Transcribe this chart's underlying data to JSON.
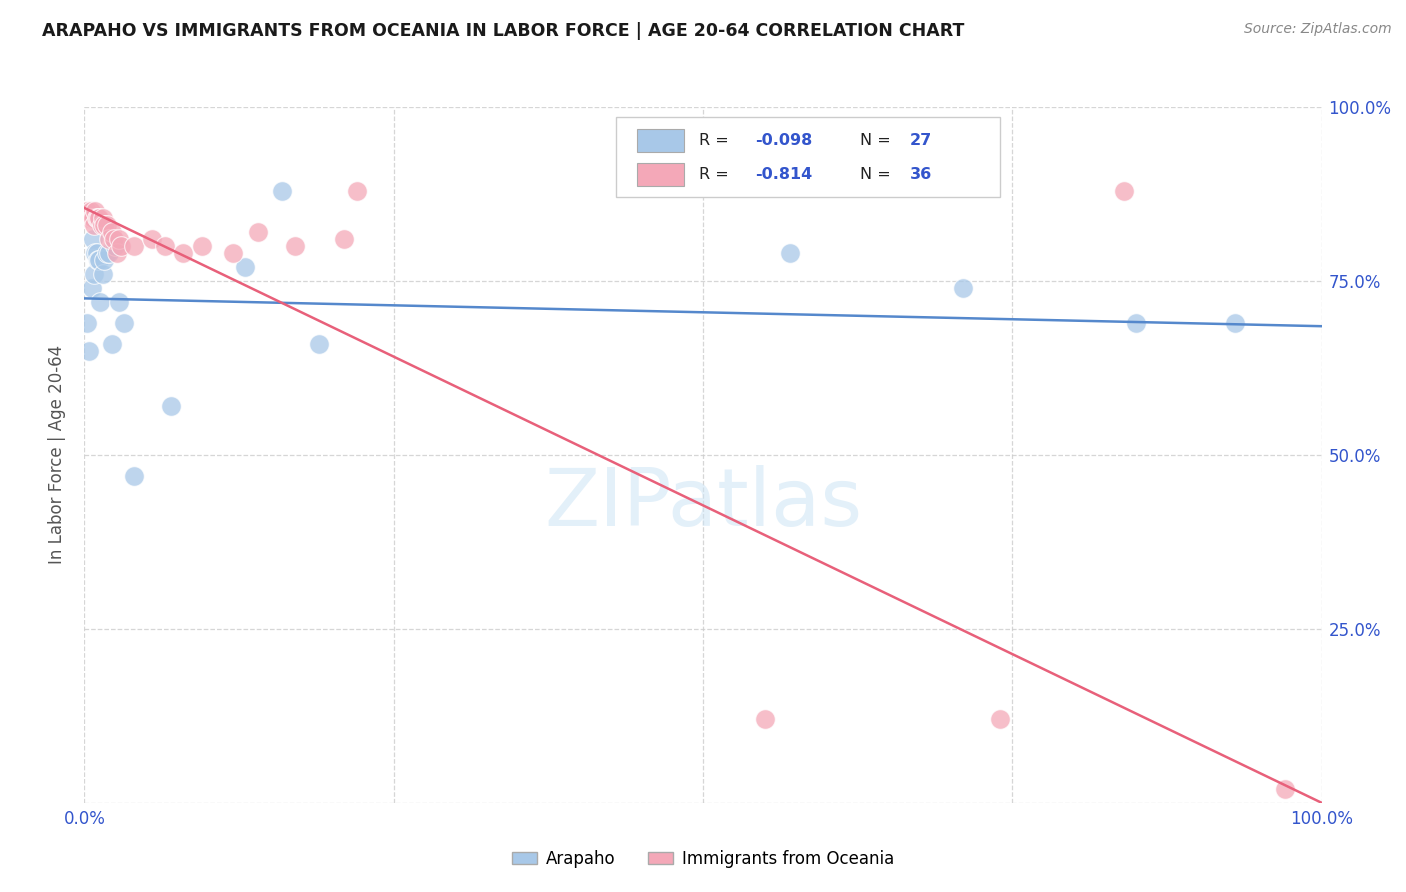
{
  "title": "ARAPAHO VS IMMIGRANTS FROM OCEANIA IN LABOR FORCE | AGE 20-64 CORRELATION CHART",
  "source": "Source: ZipAtlas.com",
  "ylabel": "In Labor Force | Age 20-64",
  "xlim": [
    0,
    1
  ],
  "ylim": [
    0,
    1
  ],
  "xticks": [
    0.0,
    0.25,
    0.5,
    0.75,
    1.0
  ],
  "yticks": [
    0.0,
    0.25,
    0.5,
    0.75,
    1.0
  ],
  "xticklabels": [
    "0.0%",
    "",
    "",
    "",
    "100.0%"
  ],
  "yticklabels_right": [
    "",
    "25.0%",
    "50.0%",
    "75.0%",
    "100.0%"
  ],
  "background_color": "#ffffff",
  "grid_color": "#cccccc",
  "watermark": "ZIPatlas",
  "blue_color": "#a8c8e8",
  "pink_color": "#f4a8b8",
  "blue_line_color": "#5588cc",
  "pink_line_color": "#e8607a",
  "arapaho_R": "-0.098",
  "arapaho_N": "27",
  "oceania_R": "-0.814",
  "oceania_N": "36",
  "arapaho_x": [
    0.002,
    0.004,
    0.006,
    0.007,
    0.008,
    0.009,
    0.01,
    0.011,
    0.012,
    0.013,
    0.015,
    0.016,
    0.018,
    0.02,
    0.022,
    0.025,
    0.028,
    0.032,
    0.04,
    0.07,
    0.13,
    0.16,
    0.19,
    0.57,
    0.71,
    0.85,
    0.93
  ],
  "arapaho_y": [
    0.69,
    0.65,
    0.74,
    0.81,
    0.76,
    0.79,
    0.79,
    0.78,
    0.78,
    0.72,
    0.76,
    0.78,
    0.79,
    0.79,
    0.66,
    0.8,
    0.72,
    0.69,
    0.47,
    0.57,
    0.77,
    0.88,
    0.66,
    0.79,
    0.74,
    0.69,
    0.69
  ],
  "oceania_x": [
    0.001,
    0.002,
    0.003,
    0.004,
    0.005,
    0.006,
    0.007,
    0.008,
    0.009,
    0.01,
    0.011,
    0.012,
    0.014,
    0.015,
    0.016,
    0.018,
    0.02,
    0.022,
    0.024,
    0.026,
    0.028,
    0.03,
    0.04,
    0.055,
    0.065,
    0.08,
    0.095,
    0.12,
    0.14,
    0.17,
    0.21,
    0.22,
    0.55,
    0.74,
    0.84,
    0.97
  ],
  "oceania_y": [
    0.84,
    0.85,
    0.84,
    0.84,
    0.85,
    0.84,
    0.84,
    0.83,
    0.85,
    0.84,
    0.84,
    0.84,
    0.83,
    0.84,
    0.83,
    0.83,
    0.81,
    0.82,
    0.81,
    0.79,
    0.81,
    0.8,
    0.8,
    0.81,
    0.8,
    0.79,
    0.8,
    0.79,
    0.82,
    0.8,
    0.81,
    0.88,
    0.12,
    0.12,
    0.88,
    0.02
  ],
  "blue_trend_x": [
    0.0,
    1.0
  ],
  "blue_trend_y_start": 0.725,
  "blue_trend_y_end": 0.685,
  "pink_trend_x": [
    0.0,
    1.0
  ],
  "pink_trend_y_start": 0.855,
  "pink_trend_y_end": 0.0
}
